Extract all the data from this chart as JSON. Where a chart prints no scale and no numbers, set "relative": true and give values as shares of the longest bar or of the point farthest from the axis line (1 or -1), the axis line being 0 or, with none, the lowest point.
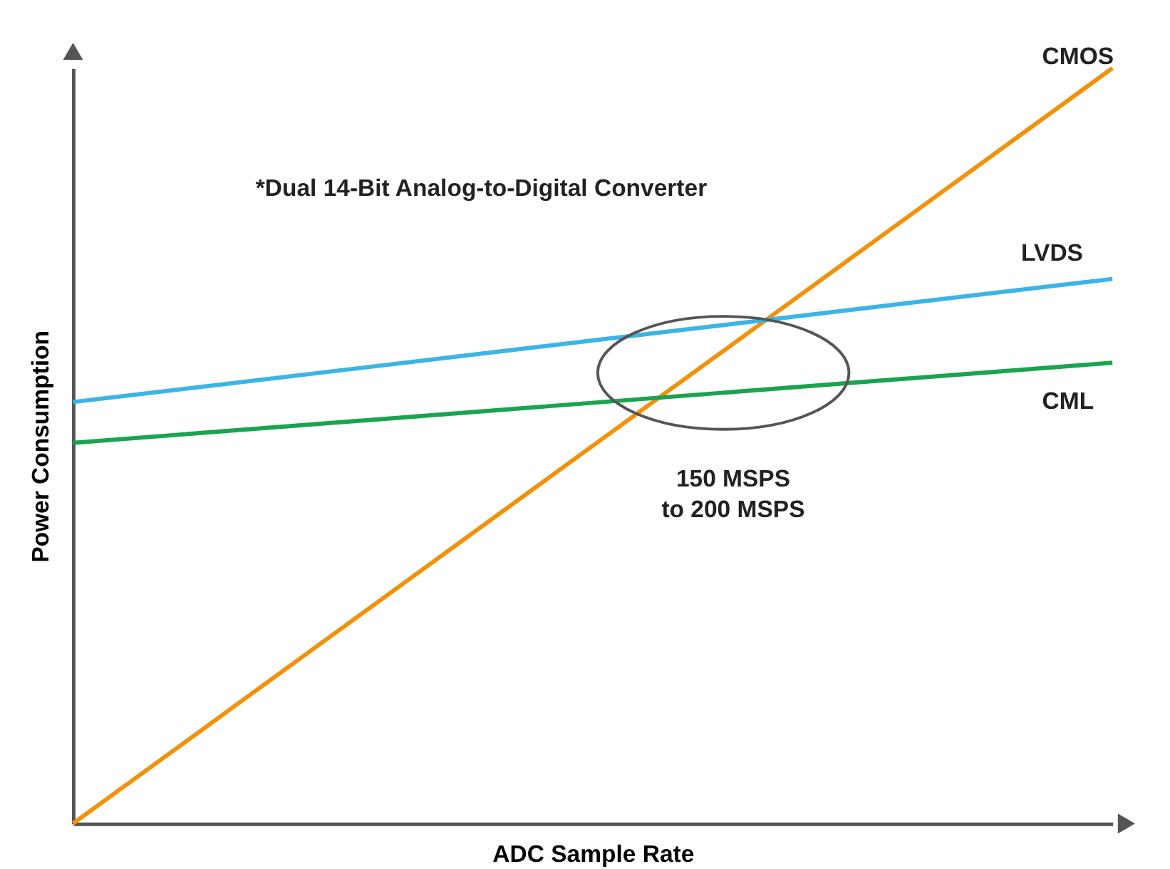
{
  "chart_data": {
    "type": "line",
    "relative": true,
    "xlabel": "ADC Sample Rate",
    "ylabel": "Power Consumption",
    "categories": [
      null,
      null
    ],
    "series": [
      {
        "name": "CMOS",
        "color": "#f0920a",
        "values": [
          0,
          1
        ]
      },
      {
        "name": "LVDS",
        "color": "#3cb4e6",
        "values": [
          0.558,
          0.721
        ]
      },
      {
        "name": "CML",
        "color": "#1aa450",
        "values": [
          0.504,
          0.61
        ]
      }
    ],
    "annotations": [
      "*Dual 14-Bit Analog-to-Digital Converter",
      "150 MSPS\nto 200 MSPS"
    ],
    "legend": false,
    "grid": false,
    "tick_labels": false,
    "marker": "none",
    "line_style": "solid"
  }
}
